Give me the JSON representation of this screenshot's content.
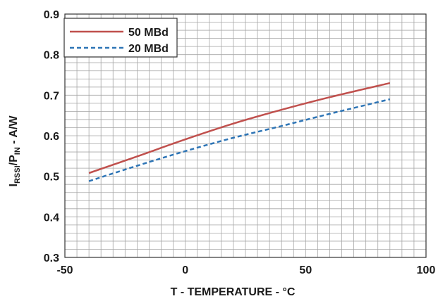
{
  "chart_data": {
    "type": "line",
    "xlabel": "T - TEMPERATURE - °C",
    "ylabel": {
      "prefix": "I",
      "prefix_sub": "RSSI",
      "mid": "/P",
      "mid_sub": "IN",
      "suffix": " - A/W"
    },
    "xlim": [
      -50,
      100
    ],
    "ylim": [
      0.3,
      0.9
    ],
    "x_ticks": [
      -50,
      0,
      50,
      100
    ],
    "x_tick_labels": [
      "-50",
      "0",
      "50",
      "100"
    ],
    "y_ticks": [
      0.3,
      0.4,
      0.5,
      0.6,
      0.7,
      0.8,
      0.9
    ],
    "y_tick_labels": [
      "0.3",
      "0.4",
      "0.5",
      "0.6",
      "0.7",
      "0.8",
      "0.9"
    ],
    "grid": true,
    "grid_minor_x_step": 5,
    "grid_minor_y_step": 0.02,
    "legend_position": "top-left",
    "series": [
      {
        "name": "50 MBd",
        "color": "#c0504d",
        "style": "solid",
        "x": [
          -40,
          -20,
          0,
          20,
          40,
          60,
          85
        ],
        "y": [
          0.508,
          0.549,
          0.591,
          0.63,
          0.664,
          0.695,
          0.73
        ]
      },
      {
        "name": "20 MBd",
        "color": "#2e75b6",
        "style": "dashed",
        "x": [
          -40,
          -20,
          0,
          20,
          40,
          60,
          85
        ],
        "y": [
          0.488,
          0.526,
          0.562,
          0.595,
          0.624,
          0.654,
          0.69
        ]
      }
    ]
  }
}
